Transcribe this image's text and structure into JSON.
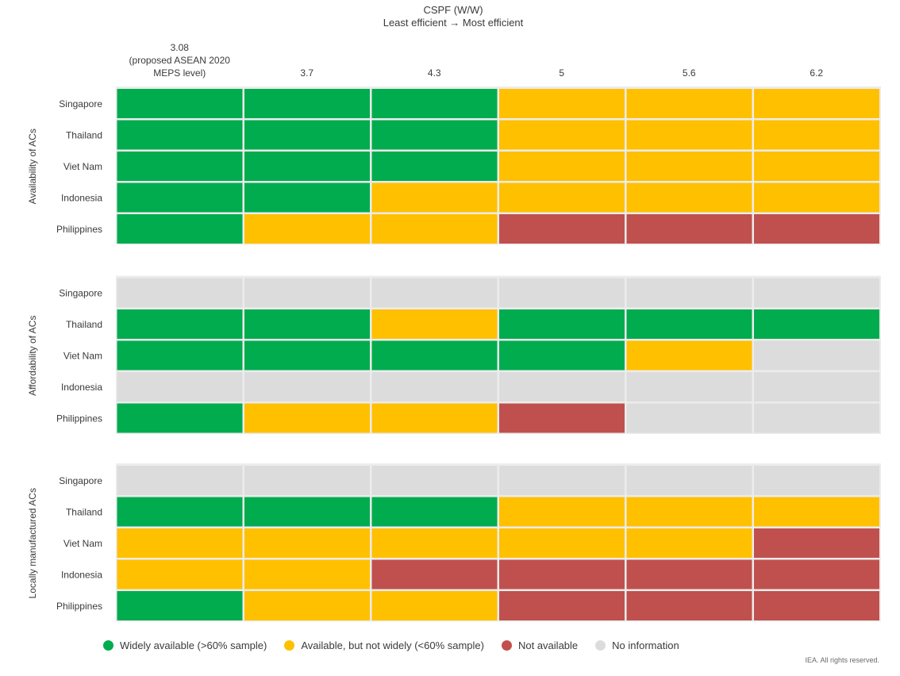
{
  "chart_data": {
    "type": "heatmap",
    "title": "CSPF (W/W)",
    "subtitle": "Least efficient → Most efficient",
    "columns": [
      "3.08",
      "3.7",
      "4.3",
      "5",
      "5.6",
      "6.2"
    ],
    "first_column_note": [
      "(proposed ASEAN 2020",
      "MEPS level)"
    ],
    "rows": [
      "Singapore",
      "Thailand",
      "Viet Nam",
      "Indonesia",
      "Philippines"
    ],
    "colors": {
      "widely": "#00AC4E",
      "available": "#FFC000",
      "not_available": "#C0504D",
      "no_info": "#DCDCDC"
    },
    "panels": [
      {
        "label": "Availability of ACs",
        "cells": [
          [
            "widely",
            "widely",
            "widely",
            "available",
            "available",
            "available"
          ],
          [
            "widely",
            "widely",
            "widely",
            "available",
            "available",
            "available"
          ],
          [
            "widely",
            "widely",
            "widely",
            "available",
            "available",
            "available"
          ],
          [
            "widely",
            "widely",
            "available",
            "available",
            "available",
            "available"
          ],
          [
            "widely",
            "available",
            "available",
            "not_available",
            "not_available",
            "not_available"
          ]
        ]
      },
      {
        "label": "Affordability of ACs",
        "cells": [
          [
            "no_info",
            "no_info",
            "no_info",
            "no_info",
            "no_info",
            "no_info"
          ],
          [
            "widely",
            "widely",
            "available",
            "widely",
            "widely",
            "widely"
          ],
          [
            "widely",
            "widely",
            "widely",
            "widely",
            "available",
            "no_info"
          ],
          [
            "no_info",
            "no_info",
            "no_info",
            "no_info",
            "no_info",
            "no_info"
          ],
          [
            "widely",
            "available",
            "available",
            "not_available",
            "no_info",
            "no_info"
          ]
        ]
      },
      {
        "label": "Locally manufactured ACs",
        "cells": [
          [
            "no_info",
            "no_info",
            "no_info",
            "no_info",
            "no_info",
            "no_info"
          ],
          [
            "widely",
            "widely",
            "widely",
            "available",
            "available",
            "available"
          ],
          [
            "available",
            "available",
            "available",
            "available",
            "available",
            "not_available"
          ],
          [
            "available",
            "available",
            "not_available",
            "not_available",
            "not_available",
            "not_available"
          ],
          [
            "widely",
            "available",
            "available",
            "not_available",
            "not_available",
            "not_available"
          ]
        ]
      }
    ],
    "legend": [
      {
        "key": "widely",
        "label": "Widely available (>60% sample)"
      },
      {
        "key": "available",
        "label": "Available, but not widely (<60% sample)"
      },
      {
        "key": "not_available",
        "label": "Not available"
      },
      {
        "key": "no_info",
        "label": "No information"
      }
    ],
    "credit": "IEA. All rights reserved."
  }
}
